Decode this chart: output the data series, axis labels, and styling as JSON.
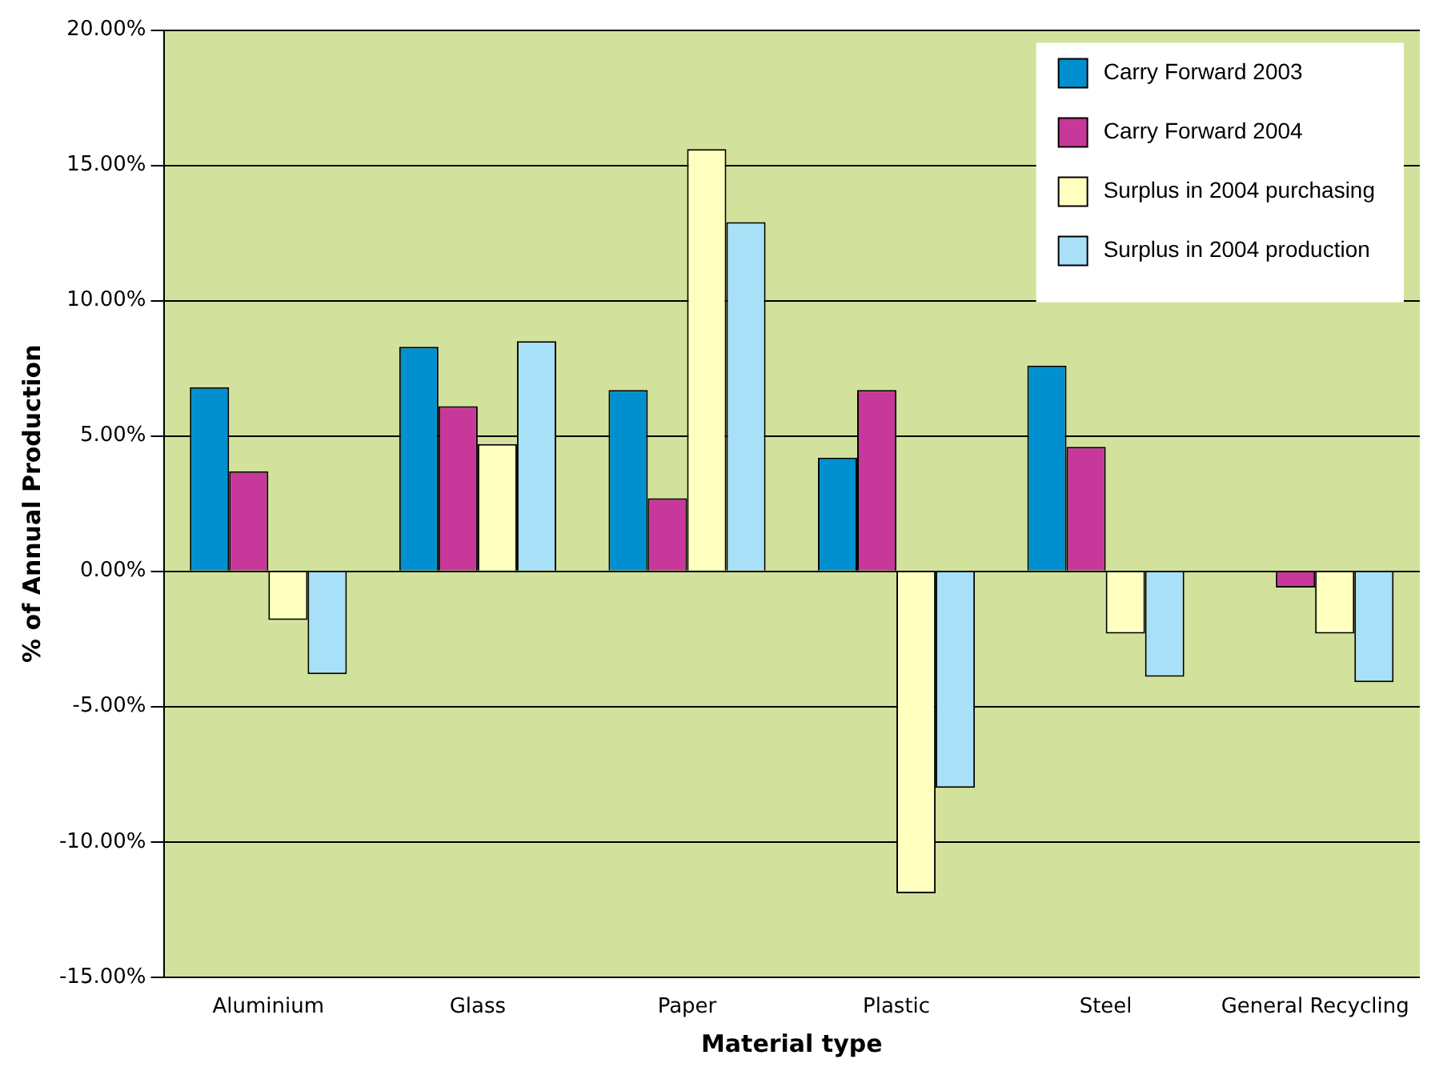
{
  "chart_data": {
    "type": "bar",
    "xlabel": "Material type",
    "ylabel": "% of Annual Production",
    "categories": [
      "Aluminium",
      "Glass",
      "Paper",
      "Plastic",
      "Steel",
      "General Recycling"
    ],
    "series": [
      {
        "name": "Carry Forward 2003",
        "color": "#0090d0",
        "values": [
          6.8,
          8.3,
          6.7,
          4.2,
          7.6,
          0
        ]
      },
      {
        "name": "Carry Forward 2004",
        "color": "#c8389a",
        "values": [
          3.7,
          6.1,
          2.7,
          6.7,
          4.6,
          -0.6
        ]
      },
      {
        "name": "Surplus in 2004 purchasing",
        "color": "#ffffc0",
        "values": [
          -1.8,
          4.7,
          15.6,
          -11.9,
          -2.3,
          -2.3
        ]
      },
      {
        "name": "Surplus in 2004 production",
        "color": "#a8e0f8",
        "values": [
          -3.8,
          8.5,
          12.9,
          -8.0,
          -3.9,
          -4.1
        ]
      }
    ],
    "ylim": [
      -15,
      20
    ],
    "yticks": [
      {
        "value": -15,
        "label": "-15.00%"
      },
      {
        "value": -10,
        "label": "-10.00%"
      },
      {
        "value": -5,
        "label": "-5.00%"
      },
      {
        "value": 0,
        "label": "0.00%"
      },
      {
        "value": 5,
        "label": "5.00%"
      },
      {
        "value": 10,
        "label": "10.00%"
      },
      {
        "value": 15,
        "label": "15.00%"
      },
      {
        "value": 20,
        "label": "20.00%"
      }
    ],
    "grid": "y",
    "legend": "top right"
  }
}
